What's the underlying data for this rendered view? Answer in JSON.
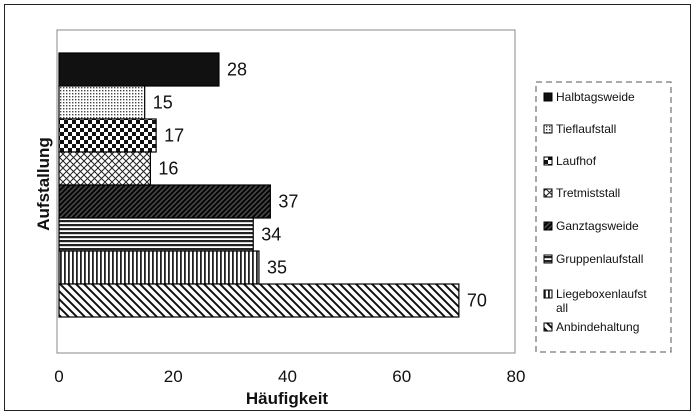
{
  "chart_data": {
    "type": "bar",
    "orientation": "horizontal",
    "title": "",
    "xlabel": "Häufigkeit",
    "ylabel": "Aufstallung",
    "xlim": [
      0,
      80
    ],
    "xticks": [
      "0",
      "20",
      "40",
      "60",
      "80"
    ],
    "grid": false,
    "legend_position": "right",
    "categories": [
      "Halbtagsweide",
      "Tieflaufstall",
      "Laufhof",
      "Tretmiststall",
      "Ganztagsweide",
      "Gruppenlaufstall",
      "Liegeboxenlaufstall",
      "Anbindehaltung"
    ],
    "values": [
      28,
      15,
      17,
      16,
      37,
      34,
      35,
      70
    ],
    "legend": [
      {
        "line1": "Halbtagsweide",
        "line2": ""
      },
      {
        "line1": "Tieflaufstall",
        "line2": ""
      },
      {
        "line1": "Laufhof",
        "line2": ""
      },
      {
        "line1": "Tretmiststall",
        "line2": ""
      },
      {
        "line1": "Ganztagsweide",
        "line2": ""
      },
      {
        "line1": "Gruppenlaufstall",
        "line2": ""
      },
      {
        "line1": "Liegeboxenlaufst",
        "line2": "all"
      },
      {
        "line1": "Anbindehaltung",
        "line2": ""
      }
    ],
    "patterns": [
      "solid-black",
      "fine-dots",
      "checkerboard",
      "crosshatch",
      "diagonal-dark",
      "horizontal-lines",
      "vertical-lines",
      "diagonal-back"
    ]
  }
}
